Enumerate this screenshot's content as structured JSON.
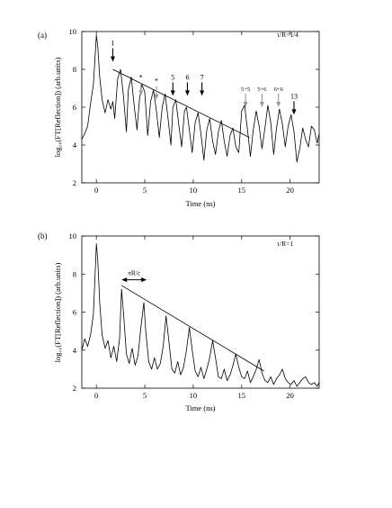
{
  "chart_data": [
    {
      "type": "line",
      "panel_label": "(a)",
      "annotation": "τ/R=1/4",
      "xlabel": "Time (ns)",
      "ylabel": "log₁₀(FT[Reflection]) (arb.units)",
      "xlim": [
        -1.5,
        23
      ],
      "ylim": [
        2,
        10
      ],
      "xticks": [
        0,
        5,
        10,
        15,
        20
      ],
      "yticks": [
        2,
        4,
        6,
        8,
        10
      ],
      "grid": false,
      "series": [
        {
          "x": [
            -1.5,
            -1.2,
            -0.9,
            -0.6,
            -0.3,
            0,
            0.15,
            0.35,
            0.6,
            0.9,
            1.2,
            1.5,
            1.7,
            1.9,
            2.2,
            2.5,
            2.8,
            3.1,
            3.3,
            3.6,
            3.9,
            4.2,
            4.45,
            4.7,
            5,
            5.3,
            5.6,
            5.9,
            6.2,
            6.5,
            6.8,
            7.1,
            7.4,
            7.7,
            7.9,
            8.2,
            8.5,
            8.8,
            9.1,
            9.3,
            9.6,
            9.9,
            10.2,
            10.5,
            10.8,
            11.1,
            11.4,
            11.7,
            12,
            12.3,
            12.6,
            12.9,
            13.2,
            13.5,
            13.8,
            14.1,
            14.4,
            14.7,
            15,
            15.3,
            15.6,
            15.9,
            16.2,
            16.5,
            16.8,
            17.1,
            17.4,
            17.7,
            18,
            18.3,
            18.6,
            18.9,
            19.2,
            19.5,
            19.8,
            20.1,
            20.4,
            20.7,
            21,
            21.3,
            21.6,
            21.9,
            22.2,
            22.5,
            22.8,
            23
          ],
          "y": [
            4.3,
            4.6,
            5.0,
            6.2,
            7.2,
            9.8,
            9.2,
            7.6,
            6.4,
            5.7,
            6.4,
            5.9,
            6.3,
            5.4,
            7.5,
            8.0,
            6.6,
            4.7,
            6.9,
            7.6,
            6.1,
            4.8,
            6.4,
            7.2,
            6.8,
            4.5,
            6.3,
            6.9,
            5.8,
            4.4,
            6.0,
            6.7,
            5.4,
            4.0,
            6.0,
            6.4,
            5.1,
            3.9,
            5.8,
            6.0,
            4.8,
            3.6,
            5.2,
            5.7,
            4.6,
            3.2,
            4.8,
            5.4,
            4.2,
            3.5,
            4.7,
            5.3,
            4.2,
            3.4,
            4.5,
            4.9,
            3.9,
            3.6,
            5.8,
            6.1,
            4.8,
            3.4,
            4.8,
            5.8,
            5.0,
            3.8,
            4.9,
            6.1,
            5.2,
            3.5,
            4.9,
            5.9,
            5.1,
            3.9,
            5.0,
            5.6,
            4.7,
            3.1,
            3.8,
            4.9,
            4.3,
            3.9,
            5.0,
            4.8,
            4.1,
            4.6
          ]
        }
      ],
      "lines": [
        {
          "from": [
            1.7,
            8.0
          ],
          "to": [
            15.8,
            4.4
          ]
        }
      ],
      "markers": [
        {
          "label": "1",
          "x": 1.7,
          "y": 8.4,
          "color": "#000000"
        },
        {
          "label": "*",
          "x": 4.6,
          "y": 6.6,
          "color": "#999999"
        },
        {
          "label": "*",
          "x": 6.2,
          "y": 6.4,
          "color": "#999999"
        },
        {
          "label": "5",
          "x": 7.9,
          "y": 6.6,
          "color": "#000000"
        },
        {
          "label": "6",
          "x": 9.4,
          "y": 6.6,
          "color": "#000000"
        },
        {
          "label": "7",
          "x": 10.9,
          "y": 6.6,
          "color": "#000000"
        },
        {
          "label": "5+5",
          "x": 15.4,
          "y": 6.0,
          "color": "#999999"
        },
        {
          "label": "5+6",
          "x": 17.1,
          "y": 6.0,
          "color": "#999999"
        },
        {
          "label": "6+6",
          "x": 18.8,
          "y": 6.0,
          "color": "#999999"
        },
        {
          "label": "13",
          "x": 20.4,
          "y": 5.6,
          "color": "#000000"
        }
      ]
    },
    {
      "type": "line",
      "panel_label": "(b)",
      "annotation": "τ/R=1",
      "xlabel": "Time (ns)",
      "ylabel": "log₁₀(FT[Reflection]) (arb.units)",
      "xlim": [
        -1.5,
        23
      ],
      "ylim": [
        2,
        10
      ],
      "xticks": [
        0,
        5,
        10,
        15,
        20
      ],
      "yticks": [
        2,
        4,
        6,
        8,
        10
      ],
      "grid": false,
      "series": [
        {
          "x": [
            -1.5,
            -1.2,
            -0.9,
            -0.6,
            -0.3,
            0,
            0.15,
            0.35,
            0.6,
            0.9,
            1.2,
            1.5,
            1.8,
            2.1,
            2.4,
            2.6,
            2.8,
            3.1,
            3.4,
            3.7,
            4,
            4.3,
            4.6,
            4.9,
            5.1,
            5.4,
            5.7,
            6,
            6.3,
            6.6,
            6.9,
            7.2,
            7.5,
            7.8,
            8.1,
            8.4,
            8.7,
            9,
            9.3,
            9.6,
            9.9,
            10.2,
            10.5,
            10.8,
            11.1,
            11.4,
            11.7,
            12,
            12.3,
            12.6,
            12.9,
            13.2,
            13.5,
            13.8,
            14.1,
            14.4,
            14.7,
            15,
            15.3,
            15.6,
            15.9,
            16.2,
            16.5,
            16.8,
            17.1,
            17.4,
            17.7,
            18,
            18.3,
            18.6,
            18.9,
            19.2,
            19.5,
            19.8,
            20.1,
            20.4,
            20.7,
            21,
            21.3,
            21.6,
            21.9,
            22.2,
            22.5,
            22.8,
            23
          ],
          "y": [
            4.0,
            4.6,
            4.2,
            4.8,
            5.9,
            9.6,
            8.7,
            6.5,
            4.8,
            4.1,
            4.5,
            3.6,
            4.2,
            3.4,
            4.6,
            7.2,
            6.0,
            3.8,
            3.3,
            4.1,
            3.2,
            3.7,
            5.2,
            6.5,
            5.0,
            3.4,
            3.0,
            3.6,
            3.0,
            3.3,
            4.2,
            5.8,
            4.4,
            3.0,
            2.8,
            3.4,
            2.7,
            3.1,
            4.0,
            5.2,
            4.0,
            2.9,
            2.6,
            3.1,
            2.5,
            3.0,
            3.6,
            4.5,
            3.6,
            2.6,
            2.5,
            3.0,
            2.4,
            2.7,
            3.2,
            3.8,
            3.1,
            2.6,
            2.5,
            2.9,
            2.3,
            2.6,
            3.0,
            3.5,
            2.8,
            2.4,
            2.3,
            2.6,
            2.2,
            2.5,
            2.7,
            3.0,
            2.5,
            2.3,
            2.2,
            2.4,
            2.1,
            2.3,
            2.5,
            2.6,
            2.3,
            2.2,
            2.3,
            2.1,
            2.3
          ]
        }
      ],
      "lines": [
        {
          "from": [
            2.6,
            7.4
          ],
          "to": [
            17.3,
            2.9
          ]
        }
      ],
      "span_arrow": {
        "label": "πR/c",
        "x1": 2.6,
        "x2": 5.2,
        "y": 7.7
      }
    }
  ]
}
